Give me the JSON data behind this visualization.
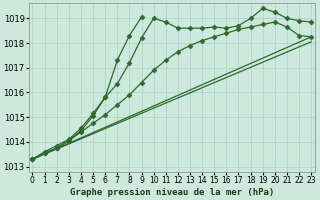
{
  "title": "Graphe pression niveau de la mer (hPa)",
  "bg_color": "#cde8dc",
  "grid_color": "#b0cfc4",
  "line_color": "#2d6a2d",
  "x_ticks": [
    0,
    1,
    2,
    3,
    4,
    5,
    6,
    7,
    8,
    9,
    10,
    11,
    12,
    13,
    14,
    15,
    16,
    17,
    18,
    19,
    20,
    21,
    22,
    23
  ],
  "y_ticks": [
    1013,
    1014,
    1015,
    1016,
    1017,
    1018,
    1019
  ],
  "ylim": [
    1012.8,
    1019.6
  ],
  "xlim": [
    -0.3,
    23.3
  ],
  "line_straight1": {
    "x": [
      0,
      23
    ],
    "y": [
      1013.3,
      1018.25
    ]
  },
  "line_straight2": {
    "x": [
      0,
      23
    ],
    "y": [
      1013.3,
      1018.05
    ]
  },
  "line_gradual": {
    "x": [
      0,
      1,
      2,
      3,
      4,
      5,
      6,
      7,
      8,
      9,
      10,
      11,
      12,
      13,
      14,
      15,
      16,
      17,
      18,
      19,
      20,
      21,
      22,
      23
    ],
    "y": [
      1013.3,
      1013.55,
      1013.75,
      1014.05,
      1014.4,
      1014.75,
      1015.1,
      1015.5,
      1015.9,
      1016.4,
      1016.9,
      1017.3,
      1017.65,
      1017.9,
      1018.1,
      1018.25,
      1018.4,
      1018.55,
      1018.65,
      1018.75,
      1018.85,
      1018.65,
      1018.3,
      1018.25
    ]
  },
  "line_steep": {
    "x": [
      0,
      1,
      2,
      3,
      4,
      5,
      6,
      7,
      8,
      9,
      10,
      11,
      12,
      13,
      14,
      15,
      16,
      17,
      18,
      19,
      20,
      21,
      22,
      23
    ],
    "y": [
      1013.3,
      1013.55,
      1013.75,
      1014.05,
      1014.45,
      1015.05,
      1015.8,
      1016.35,
      1017.2,
      1018.2,
      1019.0,
      1018.85,
      1018.6,
      1018.6,
      1018.6,
      1018.65,
      1018.6,
      1018.7,
      1019.0,
      1019.4,
      1019.25,
      1019.0,
      1018.9,
      1018.85
    ]
  },
  "line_vsteep": {
    "x": [
      0,
      1,
      2,
      3,
      4,
      5,
      6,
      7,
      8,
      9
    ],
    "y": [
      1013.3,
      1013.6,
      1013.85,
      1014.1,
      1014.55,
      1015.15,
      1015.8,
      1017.3,
      1018.3,
      1019.05
    ]
  },
  "marker": "D",
  "markersize": 2.5,
  "linewidth": 0.9
}
